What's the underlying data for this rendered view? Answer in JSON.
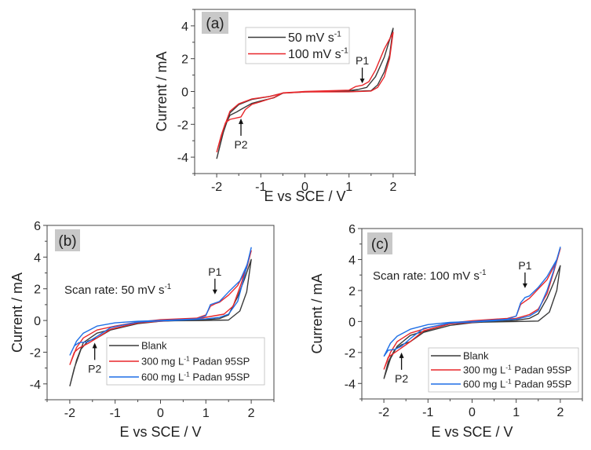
{
  "chart_data": [
    {
      "type": "line",
      "panel_label": "(a)",
      "xlabel": "E vs SCE / V",
      "ylabel": "Current / mA",
      "xlim": [
        -2.5,
        2.5
      ],
      "ylim": [
        -5,
        5
      ],
      "xticks": [
        -2,
        -1,
        0,
        1,
        2
      ],
      "yticks": [
        -4,
        -2,
        0,
        2,
        4
      ],
      "note": null,
      "legend_placement": "top-center",
      "series": [
        {
          "name": "50  mV s",
          "sup": "-1",
          "post": "",
          "color": "#3a3a3a",
          "points": [
            [
              -2,
              -4.1
            ],
            [
              -1.9,
              -3.0
            ],
            [
              -1.8,
              -2.0
            ],
            [
              -1.7,
              -1.45
            ],
            [
              -1.55,
              -1.25
            ],
            [
              -1.42,
              -1.05
            ],
            [
              -1.2,
              -0.72
            ],
            [
              -1,
              -0.58
            ],
            [
              -0.7,
              -0.38
            ],
            [
              -0.5,
              -0.1
            ],
            [
              0,
              -0.03
            ],
            [
              0.5,
              0
            ],
            [
              1,
              0.05
            ],
            [
              1.2,
              0.12
            ],
            [
              1.4,
              0.25
            ],
            [
              1.6,
              0.9
            ],
            [
              1.8,
              2.1
            ],
            [
              2,
              3.85
            ],
            [
              1.92,
              2.2
            ],
            [
              1.8,
              1.2
            ],
            [
              1.65,
              0.4
            ],
            [
              1.5,
              0.05
            ],
            [
              1,
              0
            ],
            [
              0,
              -0.02
            ],
            [
              -0.5,
              -0.1
            ],
            [
              -0.8,
              -0.3
            ],
            [
              -1.2,
              -0.48
            ],
            [
              -1.5,
              -0.8
            ],
            [
              -1.7,
              -1.3
            ],
            [
              -1.85,
              -2.5
            ],
            [
              -2,
              -4.1
            ]
          ]
        },
        {
          "name": "100 mV s",
          "sup": "-1",
          "post": "",
          "color": "#e8262a",
          "points": [
            [
              -2,
              -3.7
            ],
            [
              -1.9,
              -2.7
            ],
            [
              -1.8,
              -1.9
            ],
            [
              -1.7,
              -1.7
            ],
            [
              -1.45,
              -1.55
            ],
            [
              -1.35,
              -1.1
            ],
            [
              -1.2,
              -0.78
            ],
            [
              -1,
              -0.62
            ],
            [
              -0.7,
              -0.36
            ],
            [
              -0.5,
              -0.08
            ],
            [
              0,
              0
            ],
            [
              1,
              0.08
            ],
            [
              1.15,
              0.3
            ],
            [
              1.3,
              0.38
            ],
            [
              1.45,
              0.6
            ],
            [
              1.6,
              1.3
            ],
            [
              1.8,
              2.6
            ],
            [
              2,
              3.6
            ],
            [
              1.92,
              2.0
            ],
            [
              1.8,
              0.9
            ],
            [
              1.65,
              0.25
            ],
            [
              1.5,
              0.03
            ],
            [
              1,
              -0.02
            ],
            [
              0,
              -0.03
            ],
            [
              -0.5,
              -0.1
            ],
            [
              -0.8,
              -0.3
            ],
            [
              -1.2,
              -0.45
            ],
            [
              -1.5,
              -0.75
            ],
            [
              -1.7,
              -1.2
            ],
            [
              -1.85,
              -2.3
            ],
            [
              -2,
              -3.7
            ]
          ]
        }
      ],
      "annotations": [
        {
          "text": "P1",
          "x": 1.3,
          "y": 0.4,
          "dir": "down"
        },
        {
          "text": "P2",
          "x": -1.45,
          "y": -1.55,
          "dir": "up"
        }
      ]
    },
    {
      "type": "line",
      "panel_label": "(b)",
      "xlabel": "E vs SCE / V",
      "ylabel": "Current / mA",
      "xlim": [
        -2.5,
        2.5
      ],
      "ylim": [
        -5,
        6
      ],
      "xticks": [
        -2,
        -1,
        0,
        1,
        2
      ],
      "yticks": [
        -4,
        -2,
        0,
        2,
        4,
        6
      ],
      "note": {
        "text": "Scan rate: 50 mV s",
        "sup": "-1"
      },
      "legend_placement": "bottom-right",
      "series": [
        {
          "name": "Blank",
          "sup": "",
          "post": "",
          "color": "#3a3a3a",
          "points": [
            [
              -2,
              -4.15
            ],
            [
              -1.9,
              -3.0
            ],
            [
              -1.75,
              -1.8
            ],
            [
              -1.6,
              -1.3
            ],
            [
              -1.4,
              -1.1
            ],
            [
              -1.1,
              -0.6
            ],
            [
              -0.5,
              -0.2
            ],
            [
              0,
              -0.05
            ],
            [
              1,
              0.05
            ],
            [
              1.3,
              0.12
            ],
            [
              1.5,
              0.35
            ],
            [
              1.7,
              1.5
            ],
            [
              1.85,
              2.6
            ],
            [
              2,
              3.85
            ],
            [
              1.9,
              1.8
            ],
            [
              1.75,
              0.6
            ],
            [
              1.5,
              0.03
            ],
            [
              1,
              0
            ],
            [
              0,
              -0.02
            ],
            [
              -0.5,
              -0.15
            ],
            [
              -1,
              -0.5
            ],
            [
              -1.4,
              -0.8
            ],
            [
              -1.7,
              -1.4
            ],
            [
              -1.85,
              -2.5
            ],
            [
              -2,
              -4.15
            ]
          ]
        },
        {
          "name": "300 mg L",
          "sup": "-1",
          "post": " Padan 95SP",
          "color": "#e8262a",
          "points": [
            [
              -2,
              -2.8
            ],
            [
              -1.9,
              -2.0
            ],
            [
              -1.8,
              -1.75
            ],
            [
              -1.6,
              -1.45
            ],
            [
              -1.4,
              -1.1
            ],
            [
              -1.1,
              -0.55
            ],
            [
              -0.5,
              -0.15
            ],
            [
              0,
              -0.05
            ],
            [
              0.5,
              0.05
            ],
            [
              0.9,
              0.15
            ],
            [
              1.1,
              0.25
            ],
            [
              1.4,
              0.4
            ],
            [
              1.6,
              0.9
            ],
            [
              1.8,
              2.5
            ],
            [
              2,
              4.4
            ],
            [
              1.9,
              3.3
            ],
            [
              1.7,
              2.2
            ],
            [
              1.5,
              1.6
            ],
            [
              1.3,
              1.15
            ],
            [
              1.2,
              1.05
            ],
            [
              1.1,
              0.9
            ],
            [
              1.0,
              0.35
            ],
            [
              0.8,
              0.15
            ],
            [
              0,
              0.05
            ],
            [
              -0.5,
              -0.1
            ],
            [
              -1,
              -0.35
            ],
            [
              -1.4,
              -0.6
            ],
            [
              -1.7,
              -1.1
            ],
            [
              -1.85,
              -1.7
            ],
            [
              -2,
              -2.8
            ]
          ]
        },
        {
          "name": " 600 mg L",
          "sup": "-1",
          "post": " Padan 95SP",
          "color": "#1f6fe6",
          "points": [
            [
              -2,
              -2.2
            ],
            [
              -1.9,
              -1.6
            ],
            [
              -1.8,
              -1.4
            ],
            [
              -1.6,
              -1.35
            ],
            [
              -1.4,
              -1.0
            ],
            [
              -1.1,
              -0.45
            ],
            [
              -0.5,
              -0.1
            ],
            [
              0,
              -0.03
            ],
            [
              0.5,
              0.03
            ],
            [
              1,
              0.1
            ],
            [
              1.3,
              0.2
            ],
            [
              1.5,
              0.4
            ],
            [
              1.7,
              1.2
            ],
            [
              1.85,
              2.8
            ],
            [
              2,
              4.6
            ],
            [
              1.92,
              3.6
            ],
            [
              1.75,
              2.5
            ],
            [
              1.5,
              1.8
            ],
            [
              1.3,
              1.2
            ],
            [
              1.2,
              1.1
            ],
            [
              1.1,
              1.0
            ],
            [
              1.0,
              0.3
            ],
            [
              0.8,
              0.1
            ],
            [
              0,
              0
            ],
            [
              -0.5,
              -0.05
            ],
            [
              -1,
              -0.15
            ],
            [
              -1.4,
              -0.35
            ],
            [
              -1.7,
              -0.8
            ],
            [
              -1.85,
              -1.3
            ],
            [
              -2,
              -2.2
            ]
          ]
        }
      ],
      "annotations": [
        {
          "text": "P1",
          "x": 1.2,
          "y": 1.55,
          "dir": "down"
        },
        {
          "text": "P2",
          "x": -1.45,
          "y": -1.3,
          "dir": "up"
        }
      ]
    },
    {
      "type": "line",
      "panel_label": "(c)",
      "xlabel": "E vs SCE / V",
      "ylabel": "Current / mA",
      "xlim": [
        -2.5,
        2.5
      ],
      "ylim": [
        -5,
        6
      ],
      "xticks": [
        -2,
        -1,
        0,
        1,
        2
      ],
      "yticks": [
        -4,
        -2,
        0,
        2,
        4,
        6
      ],
      "note": {
        "text": "Scan rate: 100 mV s",
        "sup": "-1"
      },
      "legend_placement": "bottom-right",
      "series": [
        {
          "name": "Blank",
          "sup": "",
          "post": "",
          "color": "#3a3a3a",
          "points": [
            [
              -2,
              -3.7
            ],
            [
              -1.9,
              -2.6
            ],
            [
              -1.75,
              -1.8
            ],
            [
              -1.6,
              -1.5
            ],
            [
              -1.4,
              -1.3
            ],
            [
              -1.1,
              -0.7
            ],
            [
              -0.5,
              -0.25
            ],
            [
              0,
              -0.08
            ],
            [
              1,
              0.08
            ],
            [
              1.3,
              0.2
            ],
            [
              1.5,
              0.5
            ],
            [
              1.7,
              1.5
            ],
            [
              1.85,
              2.5
            ],
            [
              2,
              3.6
            ],
            [
              1.92,
              2.0
            ],
            [
              1.75,
              0.6
            ],
            [
              1.5,
              0.03
            ],
            [
              1,
              0
            ],
            [
              0,
              -0.05
            ],
            [
              -0.5,
              -0.15
            ],
            [
              -1,
              -0.55
            ],
            [
              -1.4,
              -0.9
            ],
            [
              -1.7,
              -1.6
            ],
            [
              -1.85,
              -2.4
            ],
            [
              -2,
              -3.7
            ]
          ]
        },
        {
          "name": "300 mg L",
          "sup": "-1",
          "post": " Padan 95SP",
          "color": "#e8262a",
          "points": [
            [
              -2,
              -3.1
            ],
            [
              -1.9,
              -2.3
            ],
            [
              -1.8,
              -2.1
            ],
            [
              -1.6,
              -1.7
            ],
            [
              -1.4,
              -1.3
            ],
            [
              -1.1,
              -0.6
            ],
            [
              -0.5,
              -0.15
            ],
            [
              0,
              -0.05
            ],
            [
              0.5,
              0.08
            ],
            [
              1,
              0.2
            ],
            [
              1.3,
              0.45
            ],
            [
              1.5,
              0.8
            ],
            [
              1.7,
              1.8
            ],
            [
              1.85,
              3.2
            ],
            [
              2,
              4.7
            ],
            [
              1.9,
              3.8
            ],
            [
              1.7,
              2.7
            ],
            [
              1.5,
              2.1
            ],
            [
              1.3,
              1.5
            ],
            [
              1.2,
              1.3
            ],
            [
              1.1,
              1.1
            ],
            [
              1.0,
              0.35
            ],
            [
              0.8,
              0.2
            ],
            [
              0,
              0.05
            ],
            [
              -0.5,
              -0.1
            ],
            [
              -1,
              -0.4
            ],
            [
              -1.4,
              -0.75
            ],
            [
              -1.7,
              -1.3
            ],
            [
              -1.85,
              -2.0
            ],
            [
              -2,
              -3.1
            ]
          ]
        },
        {
          "name": "600 mg L",
          "sup": "-1",
          "post": " Padan 95SP",
          "color": "#1f6fe6",
          "points": [
            [
              -2,
              -2.25
            ],
            [
              -1.9,
              -1.85
            ],
            [
              -1.75,
              -1.8
            ],
            [
              -1.6,
              -1.6
            ],
            [
              -1.4,
              -1.1
            ],
            [
              -1.1,
              -0.45
            ],
            [
              -0.5,
              -0.1
            ],
            [
              0,
              -0.03
            ],
            [
              0.5,
              0.05
            ],
            [
              1,
              0.15
            ],
            [
              1.3,
              0.35
            ],
            [
              1.5,
              0.7
            ],
            [
              1.7,
              2.0
            ],
            [
              1.85,
              3.3
            ],
            [
              2,
              4.8
            ],
            [
              1.92,
              4.0
            ],
            [
              1.7,
              2.9
            ],
            [
              1.5,
              2.2
            ],
            [
              1.3,
              1.65
            ],
            [
              1.2,
              1.55
            ],
            [
              1.1,
              1.2
            ],
            [
              1.0,
              0.35
            ],
            [
              0.8,
              0.15
            ],
            [
              0,
              0
            ],
            [
              -0.5,
              -0.05
            ],
            [
              -1,
              -0.2
            ],
            [
              -1.4,
              -0.5
            ],
            [
              -1.7,
              -0.95
            ],
            [
              -1.85,
              -1.4
            ],
            [
              -2,
              -2.25
            ]
          ]
        }
      ],
      "annotations": [
        {
          "text": "P1",
          "x": 1.2,
          "y": 2.05,
          "dir": "down"
        },
        {
          "text": "P2",
          "x": -1.6,
          "y": -1.9,
          "dir": "up"
        }
      ]
    }
  ]
}
